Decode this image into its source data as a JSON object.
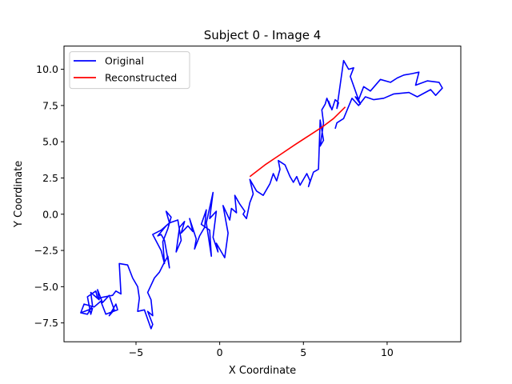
{
  "chart_data": {
    "type": "line",
    "title": "Subject 0 - Image 4",
    "xlabel": "X Coordinate",
    "ylabel": "Y Coordinate",
    "xlim": [
      -9.3,
      14.4
    ],
    "ylim": [
      -8.8,
      11.6
    ],
    "xticks": [
      -5,
      0,
      5,
      10
    ],
    "xtick_labels": [
      "−5",
      "0",
      "5",
      "10"
    ],
    "yticks": [
      -7.5,
      -5.0,
      -2.5,
      0.0,
      2.5,
      5.0,
      7.5,
      10.0
    ],
    "ytick_labels": [
      "−7.5",
      "−5.0",
      "−2.5",
      "0.0",
      "2.5",
      "5.0",
      "7.5",
      "10.0"
    ],
    "grid": false,
    "legend_position": "top-left",
    "series": [
      {
        "name": "Original",
        "color": "#0000ff",
        "x": [
          -8.3,
          -7.9,
          -7.6,
          -7.7,
          -7.2,
          -7.3,
          -7.0,
          -6.6,
          -6.3,
          -6.6,
          -6.2,
          -6.1,
          -6.8,
          -7.1,
          -7.5,
          -8.1,
          -8.3,
          -7.6,
          -7.7,
          -7.9,
          -7.4,
          -7.3,
          -6.4,
          -6.2,
          -5.9,
          -6.0,
          -5.5,
          -5.2,
          -4.9,
          -4.8,
          -4.9,
          -4.5,
          -4.1,
          -4.0,
          -4.3,
          -4.0,
          -4.1,
          -4.3,
          -3.9,
          -3.6,
          -3.3,
          -3.1,
          -3.0,
          -3.3,
          -3.5,
          -3.7,
          -3.2,
          -3.0,
          -3.5,
          -4.0,
          -3.5,
          -3.3,
          -3.4,
          -3.1,
          -2.9,
          -3.2,
          -3.0,
          -2.5,
          -2.3,
          -2.6,
          -2.4,
          -2.1,
          -2.3,
          -1.9,
          -1.6,
          -1.8,
          -1.4,
          -1.5,
          -1.2,
          -0.9,
          -0.8,
          -1.1,
          -0.6,
          -0.5,
          -0.8,
          -0.4,
          -0.6,
          -0.2,
          -0.4,
          -0.1,
          -0.2,
          0.3,
          0.5,
          0.2,
          0.6,
          0.7,
          1.0,
          0.9,
          1.2,
          1.5,
          1.4,
          1.6,
          1.8,
          2.0,
          1.8,
          2.2,
          2.6,
          3.0,
          3.2,
          3.4,
          3.6,
          3.5,
          3.9,
          4.2,
          4.4,
          4.6,
          4.8,
          5.2,
          5.4,
          5.3,
          5.6,
          5.9,
          6.0,
          6.2,
          6.0,
          6.2,
          6.1,
          6.3,
          6.4,
          6.6,
          6.5,
          6.7,
          6.9,
          7.1,
          7.0,
          7.4,
          7.7,
          8.0,
          7.8,
          8.2,
          8.4,
          8.1,
          8.3,
          8.6,
          9.0,
          9.6,
          10.2,
          10.6,
          11.0,
          11.5,
          11.9,
          11.7,
          12.4,
          13.1,
          13.3,
          12.9,
          12.6,
          11.8,
          11.3,
          10.4,
          9.8,
          9.2,
          8.7,
          8.3,
          7.9,
          7.4,
          7.0,
          6.9
        ],
        "y": [
          -6.8,
          -6.9,
          -6.3,
          -5.4,
          -5.9,
          -5.2,
          -6.1,
          -5.6,
          -6.6,
          -7.0,
          -6.2,
          -6.6,
          -6.9,
          -6.0,
          -6.4,
          -6.2,
          -6.8,
          -6.5,
          -6.9,
          -5.7,
          -5.3,
          -5.8,
          -5.6,
          -5.3,
          -5.5,
          -3.4,
          -3.5,
          -4.4,
          -5.0,
          -5.8,
          -6.7,
          -6.6,
          -7.9,
          -7.6,
          -6.7,
          -7.0,
          -5.9,
          -5.4,
          -4.4,
          -4.0,
          -3.3,
          -2.9,
          -3.7,
          -1.8,
          -1.4,
          -1.5,
          -0.8,
          -0.6,
          -1.1,
          -1.4,
          -2.5,
          -3.4,
          -1.9,
          -1.0,
          -0.2,
          0.2,
          -0.6,
          -0.4,
          -1.8,
          -2.6,
          -0.9,
          -0.5,
          -1.3,
          -0.8,
          -1.2,
          -0.3,
          -1.7,
          -2.4,
          -1.5,
          -0.9,
          0.3,
          -0.7,
          -1.1,
          -2.9,
          -0.6,
          1.5,
          -0.3,
          0.2,
          -1.6,
          -2.6,
          -2.0,
          -3.0,
          -1.3,
          0.6,
          -0.4,
          0.4,
          0.1,
          1.3,
          0.7,
          0.2,
          0.0,
          -0.3,
          0.8,
          1.4,
          2.4,
          1.6,
          1.3,
          2.1,
          2.8,
          2.3,
          3.1,
          3.7,
          3.4,
          2.6,
          2.2,
          2.6,
          2.0,
          2.8,
          2.3,
          1.9,
          2.9,
          3.1,
          6.5,
          5.1,
          4.7,
          6.3,
          7.2,
          7.6,
          8.0,
          7.4,
          7.8,
          7.2,
          7.9,
          7.7,
          7.3,
          10.6,
          10.0,
          10.1,
          9.5,
          8.2,
          7.6,
          8.1,
          7.9,
          8.8,
          8.5,
          9.3,
          9.1,
          9.4,
          9.6,
          9.7,
          9.8,
          8.9,
          9.2,
          9.1,
          8.7,
          8.2,
          8.6,
          8.1,
          8.4,
          8.3,
          8.0,
          7.9,
          8.1,
          7.5,
          8.0,
          6.6,
          6.3,
          5.9
        ]
      },
      {
        "name": "Reconstructed",
        "color": "#ff0000",
        "x": [
          1.8,
          2.7,
          3.6,
          4.5,
          5.3,
          6.1,
          6.8,
          7.5
        ],
        "y": [
          2.6,
          3.4,
          4.1,
          4.8,
          5.4,
          6.0,
          6.6,
          7.4
        ]
      }
    ]
  }
}
